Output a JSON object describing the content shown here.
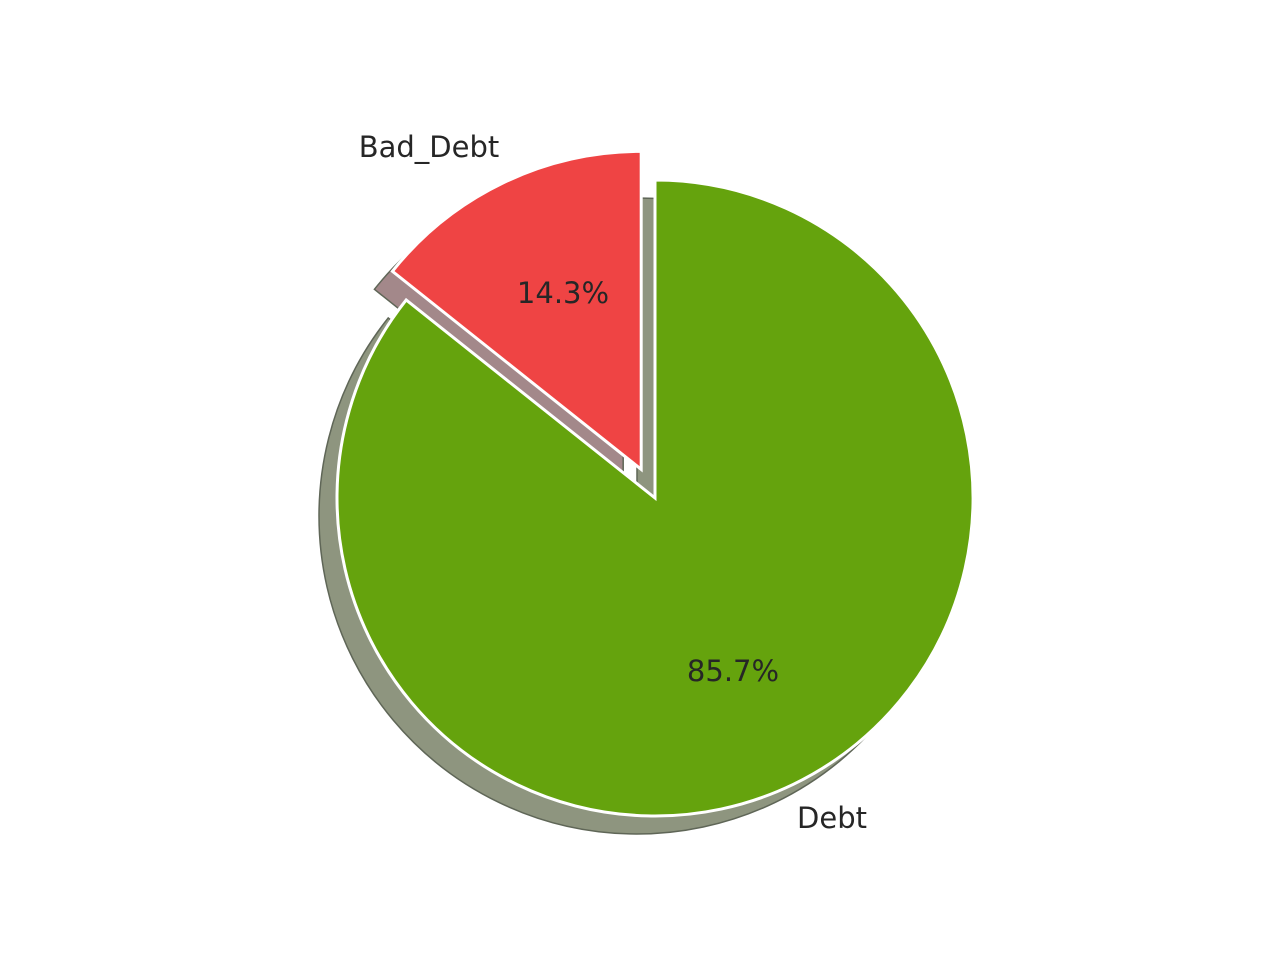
{
  "chart_data": {
    "type": "pie",
    "labels": [
      "Bad_Debt",
      "Debt"
    ],
    "values": [
      14.3,
      85.7
    ],
    "pct_labels": [
      "14.3%",
      "85.7%"
    ],
    "colors": [
      "#ef4444",
      "#65a30d"
    ],
    "shadow_colors": [
      "#a3888a",
      "#8e957f"
    ],
    "exploded": [
      true,
      false
    ],
    "shadow": true,
    "start_angle_deg": 90,
    "direction": "counterclockwise"
  }
}
